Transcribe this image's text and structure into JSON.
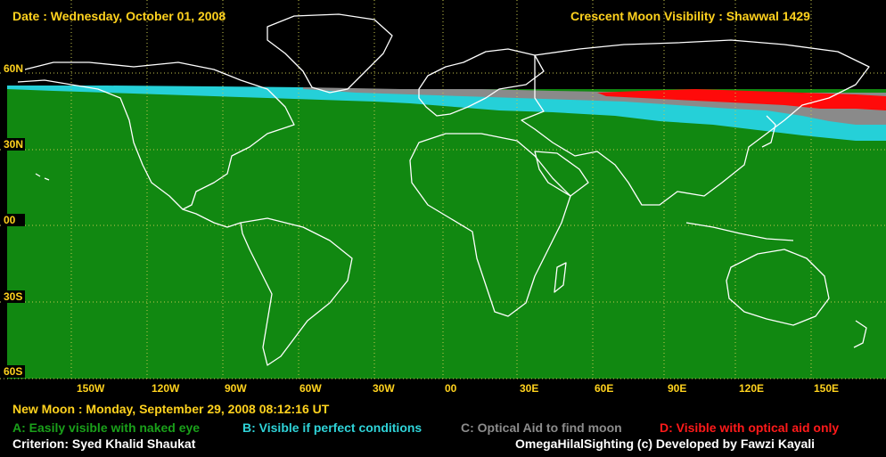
{
  "header": {
    "date_text": "Date : Wednesday, October 01, 2008",
    "title_text": "Crescent Moon Visibility : Shawwal  1429"
  },
  "new_moon_text": "New Moon : Monday, September 29, 2008  08:12:16  UT",
  "legend": [
    {
      "label": "A: Easily visible with naked eye",
      "color": "#1a8a1a"
    },
    {
      "label": "B: Visible if perfect conditions",
      "color": "#2fd3d8"
    },
    {
      "label": "C: Optical Aid to find moon",
      "color": "#8c8c8c"
    },
    {
      "label": "D: Visible with optical aid only",
      "color": "#ff1a1a"
    }
  ],
  "footer": {
    "criterion": "Criterion: Syed Khalid Shaukat",
    "credits": "OmegaHilalSighting  (c)  Developed by Fawzi Kayali"
  },
  "map": {
    "lat_labels": [
      "60N",
      "30N",
      "00",
      "30S",
      "60S"
    ],
    "lon_labels": [
      "150W",
      "120W",
      "90W",
      "60W",
      "30W",
      "00",
      "30E",
      "60E",
      "90E",
      "120E",
      "150E"
    ],
    "colors": {
      "zone_a": "#118811",
      "zone_b": "#25d0d8",
      "zone_c": "#8a8a8a",
      "zone_d": "#ff0a0a",
      "grid": "#c8c850",
      "coast": "#ffffff"
    }
  }
}
